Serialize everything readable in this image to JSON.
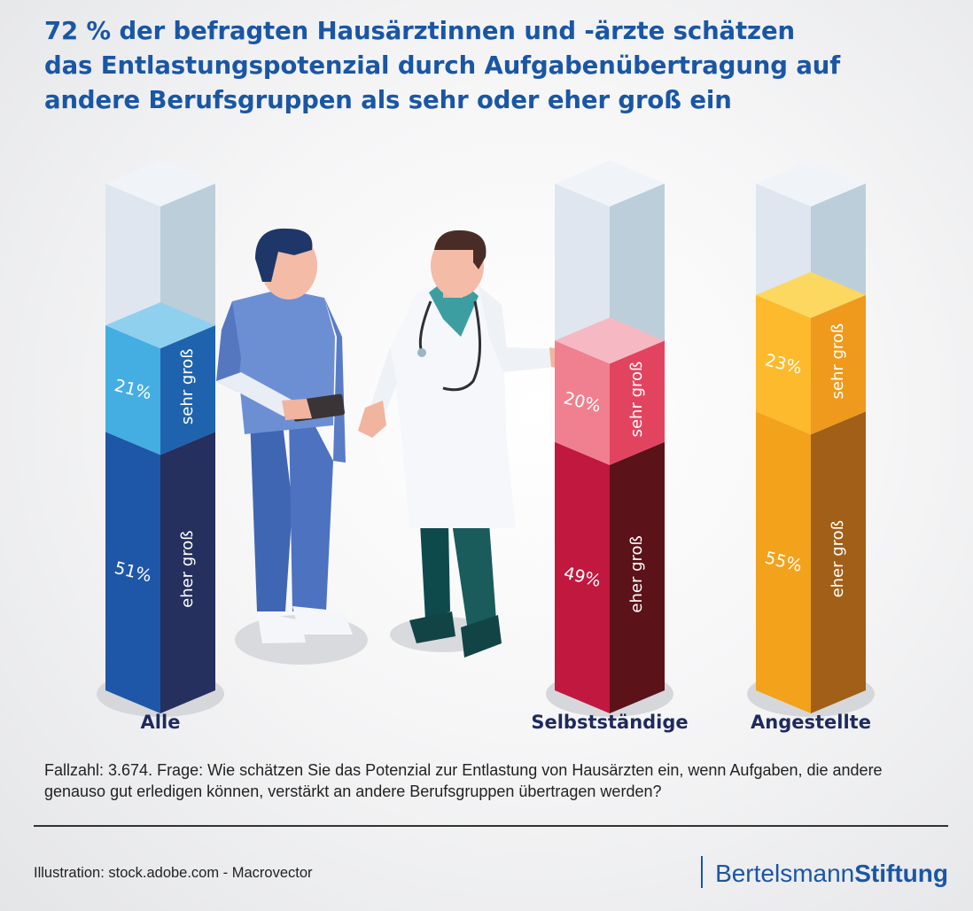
{
  "title": "72 % der befragten Hausärztinnen und -ärzte schätzen das Entlastungspotenzial durch Aufgabenübertragung auf andere Berufsgruppen als sehr oder eher groß ein",
  "chart_data": {
    "type": "bar",
    "stacked": true,
    "style": "isometric 3D columns",
    "categories": [
      "Alle",
      "Selbstständige",
      "Angestellte"
    ],
    "series": [
      {
        "name": "eher groß",
        "values": [
          51,
          49,
          55
        ],
        "value_labels": [
          "51%",
          "49%",
          "55%"
        ]
      },
      {
        "name": "sehr groß",
        "values": [
          21,
          20,
          23
        ],
        "value_labels": [
          "21%",
          "20%",
          "23%"
        ]
      }
    ],
    "ylim": [
      0,
      100
    ],
    "grid": false,
    "legend": "labels printed inside each segment",
    "colors": {
      "Alle": {
        "front": [
          "#1f57a8",
          "#44aee3"
        ],
        "side": [
          "#25305e",
          "#1f63ae"
        ],
        "top": "#8fd0ef"
      },
      "Selbstständige": {
        "front": [
          "#c0183f",
          "#f08090"
        ],
        "side": [
          "#5b1219",
          "#e2445f"
        ],
        "top": "#f6b9c4"
      },
      "Angestellte": {
        "front": [
          "#f2a21b",
          "#fcba2c"
        ],
        "side": [
          "#a15f17",
          "#ef9a1c"
        ],
        "top": "#fcd860"
      },
      "empty": {
        "front": "#dfe6ef",
        "side": "#bcced9",
        "top": "#f0f4f8"
      }
    }
  },
  "footnote": "Fallzahl: 3.674. Frage: Wie schätzen Sie das Potenzial zur Entlastung von Hausärzten ein, wenn Aufgaben, die andere genauso gut erledigen können, verstärkt an andere Berufsgruppen übertragen werden?",
  "credit": "Illustration: stock.adobe.com - Macrovector",
  "brand": {
    "part1": "Bertelsmann",
    "part2": "Stiftung"
  }
}
